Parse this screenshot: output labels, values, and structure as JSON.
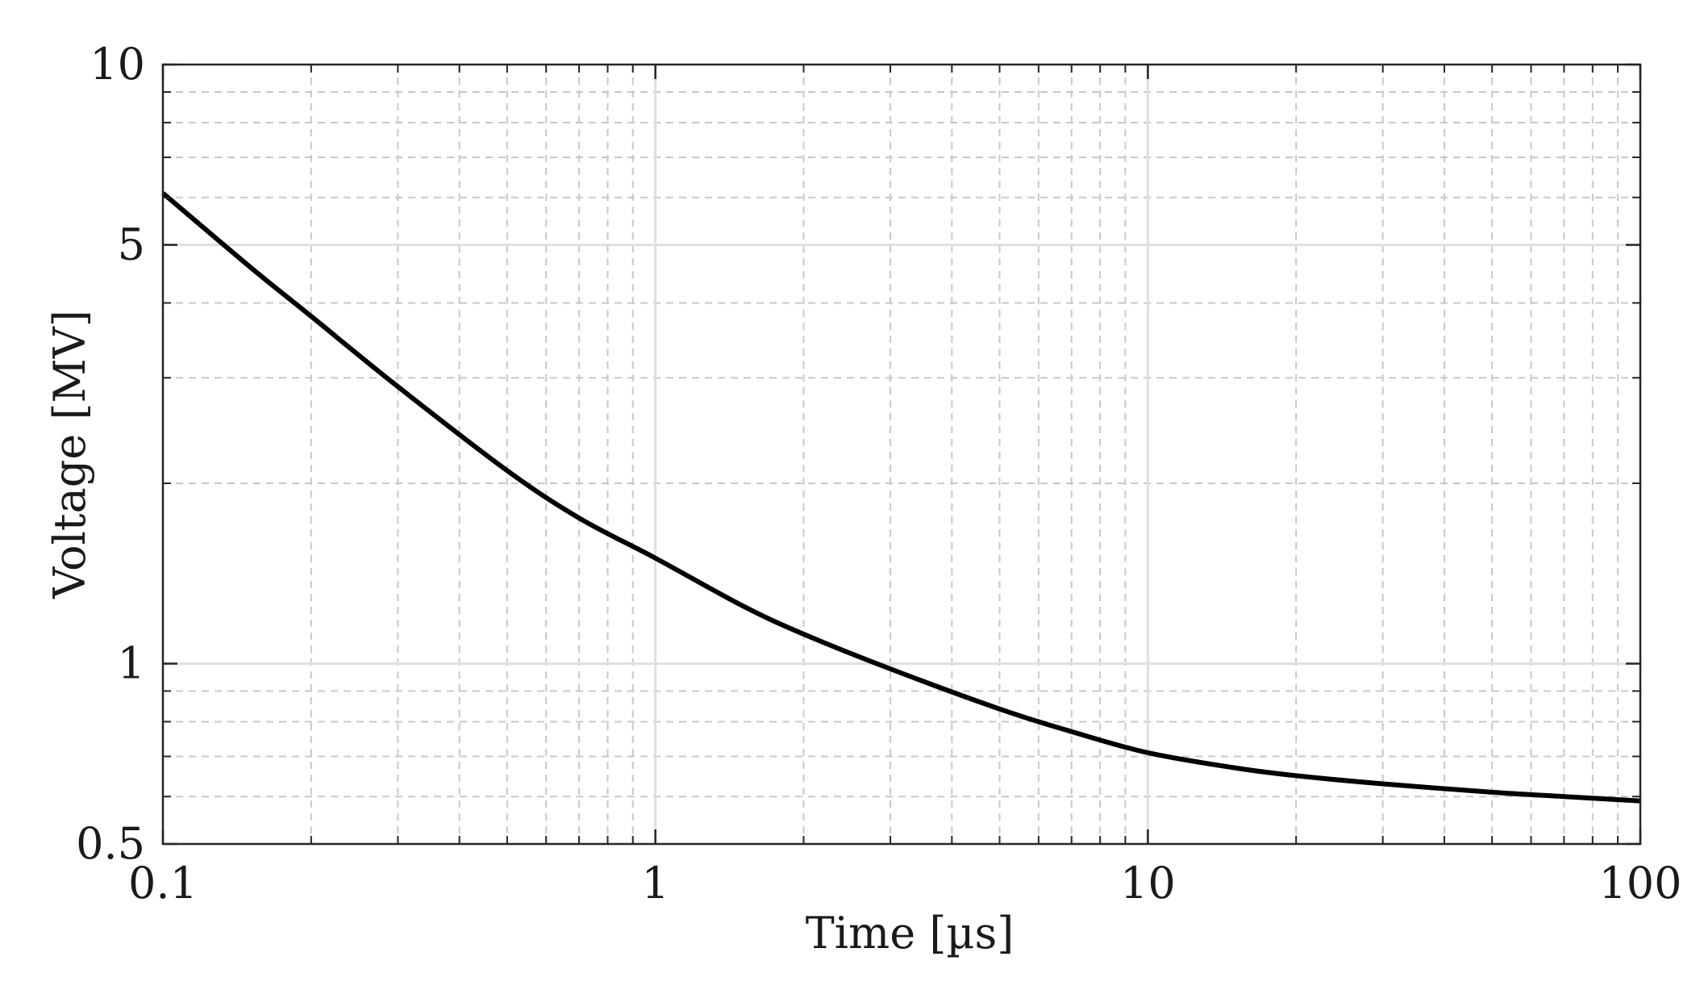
{
  "chart_data": {
    "type": "line",
    "xlabel": "Time [µs]",
    "ylabel": "Voltage [MV]",
    "xscale": "log",
    "yscale": "log",
    "xlim": [
      0.1,
      100
    ],
    "ylim": [
      0.5,
      10
    ],
    "x_ticks": [
      0.1,
      1,
      10,
      100
    ],
    "x_tick_labels": [
      "0.1",
      "1",
      "10",
      "100"
    ],
    "y_ticks": [
      0.5,
      1,
      5,
      10
    ],
    "y_tick_labels": [
      "0.5",
      "1",
      "5",
      "10"
    ],
    "grid": "major and minor (dashed)",
    "legend": "none",
    "series": [
      {
        "color": "#000000",
        "x": [
          0.1,
          0.15,
          0.2,
          0.3,
          0.5,
          0.7,
          1,
          1.5,
          2,
          3,
          5,
          7,
          10,
          15,
          20,
          30,
          50,
          70,
          100
        ],
        "y": [
          6.1,
          4.6,
          3.8,
          2.9,
          2.1,
          1.75,
          1.5,
          1.25,
          1.12,
          0.98,
          0.84,
          0.77,
          0.71,
          0.67,
          0.65,
          0.63,
          0.61,
          0.6,
          0.59
        ]
      }
    ]
  }
}
